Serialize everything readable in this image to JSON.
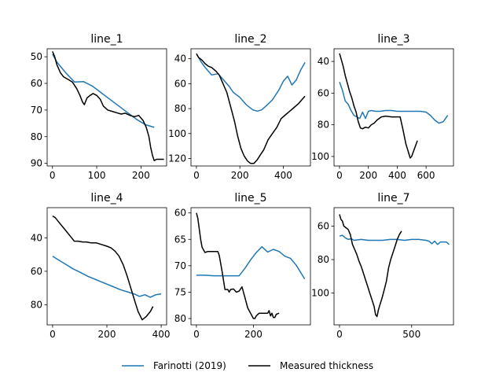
{
  "colors": {
    "model": "#1f77b4",
    "measured": "#000000",
    "axis": "#000000",
    "background": "#ffffff"
  },
  "legend": {
    "placement": "bottom-center",
    "entries": [
      {
        "label": "Farinotti (2019)",
        "color": "#1f77b4"
      },
      {
        "label": "Measured thickness",
        "color": "#000000"
      }
    ]
  },
  "chart_data": [
    {
      "type": "line",
      "title": "line_1",
      "invert_y": true,
      "xlim": [
        -12,
        258
      ],
      "ylim": [
        47,
        91
      ],
      "xticks": [
        0,
        100,
        200
      ],
      "yticks": [
        50,
        60,
        70,
        80,
        90
      ],
      "series": [
        {
          "name": "Farinotti (2019)",
          "x": [
            0,
            10,
            30,
            50,
            70,
            90,
            110,
            130,
            150,
            170,
            190,
            210,
            230
          ],
          "y": [
            49,
            52,
            56,
            59.5,
            59.3,
            61,
            63.5,
            66,
            68.5,
            71,
            73.5,
            75.5,
            76.5
          ]
        },
        {
          "name": "Measured thickness",
          "x": [
            0,
            5,
            10,
            18,
            25,
            35,
            45,
            55,
            62,
            68,
            72,
            78,
            85,
            92,
            100,
            108,
            115,
            125,
            135,
            145,
            155,
            165,
            175,
            185,
            195,
            205,
            212,
            218,
            222,
            226,
            230,
            235,
            245,
            252
          ],
          "y": [
            48,
            50,
            53,
            56,
            57.5,
            58.5,
            59.5,
            62,
            64.5,
            67,
            68,
            65.5,
            64.5,
            63.8,
            64.5,
            66,
            68.5,
            70,
            70.5,
            71,
            71.5,
            71.2,
            72,
            72.5,
            72,
            74,
            76.5,
            80,
            84,
            87,
            89,
            88.5,
            88.5,
            88.5
          ]
        }
      ]
    },
    {
      "type": "line",
      "title": "line_2",
      "invert_y": true,
      "xlim": [
        -25,
        525
      ],
      "ylim": [
        32,
        126
      ],
      "xticks": [
        0,
        200,
        400
      ],
      "yticks": [
        40,
        60,
        80,
        100,
        120
      ],
      "series": [
        {
          "name": "Farinotti (2019)",
          "x": [
            0,
            20,
            40,
            70,
            100,
            120,
            150,
            170,
            200,
            230,
            260,
            280,
            300,
            320,
            350,
            380,
            400,
            420,
            440,
            460,
            480,
            500
          ],
          "y": [
            36,
            42,
            47,
            53,
            52,
            56,
            62,
            67,
            71,
            77,
            81,
            82,
            81,
            78,
            73,
            65,
            58,
            54,
            61,
            57,
            49,
            43
          ]
        },
        {
          "name": "Measured thickness",
          "x": [
            0,
            10,
            25,
            40,
            55,
            70,
            90,
            105,
            120,
            140,
            160,
            175,
            190,
            205,
            220,
            235,
            250,
            265,
            280,
            295,
            310,
            330,
            350,
            370,
            390,
            410,
            430,
            450,
            470,
            490,
            500
          ],
          "y": [
            36,
            39,
            41,
            44,
            46,
            47,
            50,
            53,
            59,
            67,
            80,
            90,
            102,
            112,
            118,
            122,
            124,
            124,
            121,
            117,
            113,
            105,
            100,
            95,
            88,
            85,
            82,
            79,
            76,
            72,
            70
          ]
        }
      ]
    },
    {
      "type": "line",
      "title": "line_3",
      "invert_y": true,
      "xlim": [
        -38,
        790
      ],
      "ylim": [
        32,
        106
      ],
      "xticks": [
        0,
        200,
        400,
        600
      ],
      "yticks": [
        40,
        60,
        80,
        100
      ],
      "series": [
        {
          "name": "Farinotti (2019)",
          "x": [
            0,
            20,
            40,
            60,
            80,
            100,
            120,
            140,
            160,
            180,
            200,
            220,
            250,
            280,
            320,
            360,
            400,
            440,
            480,
            520,
            560,
            600,
            630,
            660,
            690,
            720,
            750
          ],
          "y": [
            53,
            58,
            65,
            67,
            71,
            74,
            75,
            76,
            72,
            76,
            71.5,
            71,
            71.5,
            71.5,
            71,
            71,
            71.5,
            71.5,
            71.5,
            71.5,
            71.5,
            72,
            74,
            77,
            79,
            78,
            74
          ]
        },
        {
          "name": "Measured thickness",
          "x": [
            0,
            10,
            25,
            40,
            55,
            70,
            85,
            100,
            115,
            130,
            145,
            160,
            180,
            200,
            220,
            240,
            260,
            290,
            320,
            360,
            400,
            420,
            440,
            460,
            480,
            490,
            500,
            520,
            540
          ],
          "y": [
            35,
            38,
            43,
            49,
            54,
            59,
            63,
            68,
            72,
            78,
            82,
            82.5,
            81.5,
            82,
            80,
            79,
            77,
            75,
            74.5,
            75,
            75,
            75,
            83,
            92,
            98,
            101,
            100,
            95,
            90
          ]
        }
      ]
    },
    {
      "type": "line",
      "title": "line_4",
      "invert_y": true,
      "xlim": [
        -20,
        420
      ],
      "ylim": [
        22,
        92
      ],
      "xticks": [
        0,
        200,
        400
      ],
      "yticks": [
        40,
        60,
        80
      ],
      "series": [
        {
          "name": "Farinotti (2019)",
          "x": [
            0,
            25,
            50,
            75,
            100,
            130,
            160,
            190,
            220,
            250,
            280,
            300,
            320,
            340,
            360,
            380,
            400
          ],
          "y": [
            51,
            53.5,
            56,
            58.5,
            60.5,
            63,
            65,
            67,
            69,
            71,
            72.5,
            73.5,
            75,
            74,
            75.5,
            74,
            73.5
          ]
        },
        {
          "name": "Measured thickness",
          "x": [
            0,
            10,
            25,
            40,
            55,
            70,
            80,
            95,
            110,
            125,
            140,
            160,
            180,
            200,
            215,
            230,
            245,
            260,
            275,
            290,
            305,
            315,
            330,
            345,
            360,
            370
          ],
          "y": [
            27,
            28,
            31,
            34,
            37,
            40,
            42,
            42,
            42.5,
            42.5,
            43,
            43,
            44,
            45,
            46,
            48,
            51,
            56,
            63,
            71,
            79,
            84,
            89,
            87,
            84,
            81
          ]
        }
      ]
    },
    {
      "type": "line",
      "title": "line_5",
      "invert_y": true,
      "xlim": [
        -19,
        400
      ],
      "ylim": [
        59,
        81.2
      ],
      "xticks": [
        0,
        200
      ],
      "yticks": [
        60,
        65,
        70,
        75,
        80
      ],
      "series": [
        {
          "name": "Farinotti (2019)",
          "x": [
            0,
            30,
            60,
            90,
            120,
            150,
            170,
            190,
            210,
            230,
            250,
            270,
            290,
            310,
            330,
            350,
            380
          ],
          "y": [
            71.8,
            71.8,
            71.9,
            71.9,
            71.9,
            71.9,
            70.5,
            68.9,
            67.5,
            66.4,
            67.4,
            66.9,
            67.3,
            68.2,
            68.6,
            69.9,
            72.5
          ]
        },
        {
          "name": "Measured thickness",
          "x": [
            0,
            5,
            10,
            15,
            20,
            25,
            30,
            40,
            50,
            60,
            70,
            75,
            80,
            90,
            100,
            110,
            115,
            120,
            130,
            140,
            150,
            160,
            170,
            180,
            190,
            200,
            205,
            210,
            220,
            230,
            240,
            250,
            255,
            260,
            265,
            270,
            275,
            280,
            290
          ],
          "y": [
            60,
            61,
            63,
            65,
            66.5,
            67,
            67.5,
            67.3,
            67.3,
            67.3,
            67.3,
            67.3,
            68,
            71,
            74.5,
            74.5,
            75,
            74.5,
            74.4,
            75,
            74.8,
            74,
            76,
            78,
            79,
            80,
            80,
            79.5,
            79,
            79,
            79,
            79,
            78.5,
            79.5,
            79,
            79.8,
            79.8,
            79.2,
            79
          ]
        }
      ]
    },
    {
      "type": "line",
      "title": "line_7",
      "invert_y": true,
      "xlim": [
        -38,
        790
      ],
      "ylim": [
        49,
        119
      ],
      "xticks": [
        0,
        500
      ],
      "yticks": [
        60,
        80,
        100
      ],
      "series": [
        {
          "name": "Farinotti (2019)",
          "x": [
            0,
            20,
            40,
            60,
            80,
            100,
            150,
            200,
            250,
            300,
            350,
            400,
            450,
            500,
            550,
            600,
            620,
            640,
            660,
            680,
            700,
            720,
            740,
            760
          ],
          "y": [
            66,
            65.5,
            67,
            68,
            67.5,
            68.5,
            68,
            68.5,
            68.5,
            68.5,
            68,
            68,
            68.5,
            68,
            68,
            68.5,
            69,
            70.5,
            69,
            71,
            69.5,
            69.5,
            69.5,
            71
          ]
        },
        {
          "name": "Measured thickness",
          "x": [
            0,
            10,
            20,
            30,
            45,
            60,
            75,
            90,
            105,
            120,
            135,
            150,
            165,
            180,
            195,
            210,
            225,
            240,
            250,
            260,
            270,
            280,
            295,
            310,
            325,
            340,
            355,
            370,
            385,
            400,
            415,
            430
          ],
          "y": [
            53,
            56,
            57,
            60,
            61,
            62,
            65,
            71,
            74,
            77,
            81,
            84,
            88,
            92,
            96,
            100,
            104,
            108,
            113,
            114,
            110,
            107,
            103,
            98,
            93,
            85,
            80,
            76,
            72,
            68,
            65,
            63
          ]
        }
      ]
    }
  ]
}
